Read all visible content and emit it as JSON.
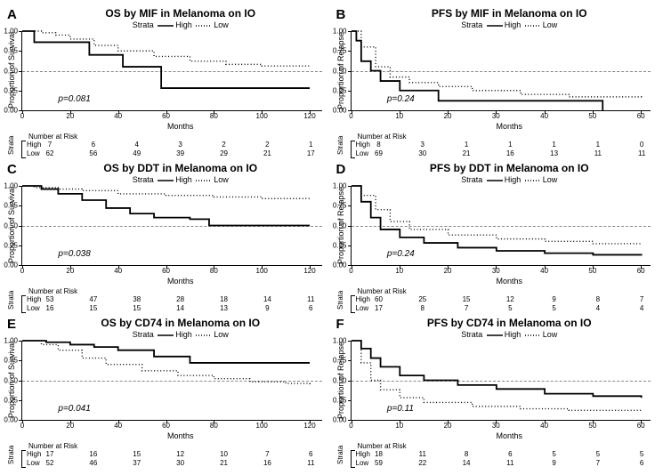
{
  "legend_label": "Strata",
  "legend_high": "High",
  "legend_low": "Low",
  "colors": {
    "high": "#000000",
    "low": "#000000",
    "ref": "#888888",
    "bg": "#ffffff"
  },
  "panels": [
    {
      "letter": "A",
      "title": "OS by MIF in Melanoma on IO",
      "ylab": "Proportion of Survival",
      "xlab": "Months",
      "pval": "p=0.081",
      "yticks": [
        0,
        0.25,
        0.5,
        0.75,
        1.0
      ],
      "xticks": [
        0,
        20,
        40,
        60,
        80,
        100,
        120
      ],
      "xlim": [
        0,
        125
      ],
      "ylim": [
        0,
        1
      ],
      "ref_y": 0.5,
      "series": {
        "high": {
          "style": "solid",
          "pts": [
            [
              0,
              1.0
            ],
            [
              5,
              1.0
            ],
            [
              5,
              0.86
            ],
            [
              28,
              0.86
            ],
            [
              28,
              0.7
            ],
            [
              42,
              0.7
            ],
            [
              42,
              0.55
            ],
            [
              58,
              0.55
            ],
            [
              58,
              0.28
            ],
            [
              120,
              0.28
            ]
          ]
        },
        "low": {
          "style": "dotted",
          "pts": [
            [
              0,
              1.0
            ],
            [
              8,
              0.98
            ],
            [
              14,
              0.95
            ],
            [
              20,
              0.9
            ],
            [
              30,
              0.82
            ],
            [
              40,
              0.75
            ],
            [
              55,
              0.68
            ],
            [
              70,
              0.62
            ],
            [
              85,
              0.58
            ],
            [
              100,
              0.56
            ],
            [
              120,
              0.55
            ]
          ]
        }
      },
      "risk_title": "Number at Risk",
      "risk_x": [
        0,
        20,
        40,
        60,
        80,
        100,
        120
      ],
      "risk": {
        "High": [
          7,
          6,
          4,
          3,
          2,
          2,
          1
        ],
        "Low": [
          62,
          56,
          49,
          39,
          29,
          21,
          17
        ]
      }
    },
    {
      "letter": "B",
      "title": "PFS by MIF in Melanoma on IO",
      "ylab": "Proportion of Relapse",
      "xlab": "Months",
      "pval": "p=0.24",
      "yticks": [
        0,
        0.25,
        0.5,
        0.75,
        1.0
      ],
      "xticks": [
        0,
        10,
        20,
        30,
        40,
        50,
        60
      ],
      "xlim": [
        0,
        62
      ],
      "ylim": [
        0,
        1
      ],
      "ref_y": 0.5,
      "series": {
        "high": {
          "style": "solid",
          "pts": [
            [
              0,
              1.0
            ],
            [
              1,
              0.88
            ],
            [
              2,
              0.62
            ],
            [
              4,
              0.5
            ],
            [
              6,
              0.37
            ],
            [
              10,
              0.25
            ],
            [
              18,
              0.25
            ],
            [
              18,
              0.12
            ],
            [
              52,
              0.12
            ],
            [
              52,
              0.0
            ]
          ]
        },
        "low": {
          "style": "dotted",
          "pts": [
            [
              0,
              1.0
            ],
            [
              2,
              0.8
            ],
            [
              5,
              0.55
            ],
            [
              8,
              0.42
            ],
            [
              12,
              0.35
            ],
            [
              18,
              0.3
            ],
            [
              25,
              0.25
            ],
            [
              35,
              0.2
            ],
            [
              45,
              0.17
            ],
            [
              60,
              0.15
            ]
          ]
        }
      },
      "risk_title": "Number at Risk",
      "risk_x": [
        0,
        10,
        20,
        30,
        40,
        50,
        60
      ],
      "risk": {
        "High": [
          8,
          3,
          1,
          1,
          1,
          1,
          0
        ],
        "Low": [
          69,
          30,
          21,
          16,
          13,
          11,
          11
        ]
      }
    },
    {
      "letter": "C",
      "title": "OS by DDT in Melanoma on IO",
      "ylab": "Proportion of Survival",
      "xlab": "Months",
      "pval": "p=0.038",
      "yticks": [
        0,
        0.25,
        0.5,
        0.75,
        1.0
      ],
      "xticks": [
        0,
        20,
        40,
        60,
        80,
        100,
        120
      ],
      "xlim": [
        0,
        125
      ],
      "ylim": [
        0,
        1
      ],
      "ref_y": 0.5,
      "series": {
        "high": {
          "style": "solid",
          "pts": [
            [
              0,
              1.0
            ],
            [
              8,
              0.96
            ],
            [
              15,
              0.9
            ],
            [
              25,
              0.82
            ],
            [
              35,
              0.72
            ],
            [
              45,
              0.65
            ],
            [
              55,
              0.6
            ],
            [
              70,
              0.58
            ],
            [
              78,
              0.5
            ],
            [
              95,
              0.5
            ],
            [
              120,
              0.5
            ]
          ]
        },
        "low": {
          "style": "dotted",
          "pts": [
            [
              0,
              1.0
            ],
            [
              5,
              0.98
            ],
            [
              15,
              0.96
            ],
            [
              25,
              0.94
            ],
            [
              40,
              0.9
            ],
            [
              60,
              0.88
            ],
            [
              80,
              0.86
            ],
            [
              100,
              0.84
            ],
            [
              120,
              0.82
            ]
          ]
        }
      },
      "risk_title": "Number at Risk",
      "risk_x": [
        0,
        20,
        40,
        60,
        80,
        100,
        120
      ],
      "risk": {
        "High": [
          53,
          47,
          38,
          28,
          18,
          14,
          11
        ],
        "Low": [
          16,
          15,
          15,
          14,
          13,
          9,
          6
        ]
      }
    },
    {
      "letter": "D",
      "title": "PFS by DDT in Melanoma on IO",
      "ylab": "Proportion of Relapse",
      "xlab": "Months",
      "pval": "p=0.24",
      "yticks": [
        0,
        0.25,
        0.5,
        0.75,
        1.0
      ],
      "xticks": [
        0,
        10,
        20,
        30,
        40,
        50,
        60
      ],
      "xlim": [
        0,
        62
      ],
      "ylim": [
        0,
        1
      ],
      "ref_y": 0.5,
      "series": {
        "high": {
          "style": "solid",
          "pts": [
            [
              0,
              1.0
            ],
            [
              2,
              0.8
            ],
            [
              4,
              0.6
            ],
            [
              6,
              0.45
            ],
            [
              10,
              0.35
            ],
            [
              15,
              0.28
            ],
            [
              22,
              0.22
            ],
            [
              30,
              0.18
            ],
            [
              40,
              0.15
            ],
            [
              50,
              0.13
            ],
            [
              60,
              0.12
            ]
          ]
        },
        "low": {
          "style": "dotted",
          "pts": [
            [
              0,
              1.0
            ],
            [
              2,
              0.88
            ],
            [
              5,
              0.7
            ],
            [
              8,
              0.55
            ],
            [
              12,
              0.45
            ],
            [
              20,
              0.38
            ],
            [
              30,
              0.33
            ],
            [
              40,
              0.3
            ],
            [
              50,
              0.27
            ],
            [
              60,
              0.26
            ]
          ]
        }
      },
      "risk_title": "Number at Risk",
      "risk_x": [
        0,
        10,
        20,
        30,
        40,
        50,
        60
      ],
      "risk": {
        "High": [
          60,
          25,
          15,
          12,
          9,
          8,
          7
        ],
        "Low": [
          17,
          8,
          7,
          5,
          5,
          4,
          4
        ]
      }
    },
    {
      "letter": "E",
      "title": "OS by CD74 in Melanoma on IO",
      "ylab": "Proportion of Survival",
      "xlab": "Months",
      "pval": "p=0.041",
      "yticks": [
        0,
        0.25,
        0.5,
        0.75,
        1.0
      ],
      "xticks": [
        0,
        20,
        40,
        60,
        80,
        100,
        120
      ],
      "xlim": [
        0,
        125
      ],
      "ylim": [
        0,
        1
      ],
      "ref_y": 0.5,
      "series": {
        "high": {
          "style": "solid",
          "pts": [
            [
              0,
              1.0
            ],
            [
              10,
              0.98
            ],
            [
              20,
              0.95
            ],
            [
              30,
              0.92
            ],
            [
              40,
              0.88
            ],
            [
              55,
              0.88
            ],
            [
              55,
              0.8
            ],
            [
              70,
              0.8
            ],
            [
              70,
              0.72
            ],
            [
              120,
              0.72
            ]
          ]
        },
        "low": {
          "style": "dotted",
          "pts": [
            [
              0,
              1.0
            ],
            [
              8,
              0.95
            ],
            [
              15,
              0.88
            ],
            [
              25,
              0.78
            ],
            [
              35,
              0.7
            ],
            [
              50,
              0.62
            ],
            [
              65,
              0.56
            ],
            [
              80,
              0.52
            ],
            [
              95,
              0.48
            ],
            [
              110,
              0.46
            ],
            [
              120,
              0.45
            ]
          ]
        }
      },
      "risk_title": "Number at Risk",
      "risk_x": [
        0,
        20,
        40,
        60,
        80,
        100,
        120
      ],
      "risk": {
        "High": [
          17,
          16,
          15,
          12,
          10,
          7,
          6
        ],
        "Low": [
          52,
          46,
          37,
          30,
          21,
          16,
          11
        ]
      }
    },
    {
      "letter": "F",
      "title": "PFS by CD74 in Melanoma on IO",
      "ylab": "Proportion of Relapse",
      "xlab": "Months",
      "pval": "p=0.11",
      "yticks": [
        0,
        0.25,
        0.5,
        0.75,
        1.0
      ],
      "xticks": [
        0,
        10,
        20,
        30,
        40,
        50,
        60
      ],
      "xlim": [
        0,
        62
      ],
      "ylim": [
        0,
        1
      ],
      "ref_y": 0.5,
      "series": {
        "high": {
          "style": "solid",
          "pts": [
            [
              0,
              1.0
            ],
            [
              2,
              0.9
            ],
            [
              4,
              0.78
            ],
            [
              6,
              0.67
            ],
            [
              10,
              0.56
            ],
            [
              15,
              0.5
            ],
            [
              22,
              0.44
            ],
            [
              30,
              0.39
            ],
            [
              40,
              0.33
            ],
            [
              50,
              0.3
            ],
            [
              60,
              0.28
            ]
          ]
        },
        "low": {
          "style": "dotted",
          "pts": [
            [
              0,
              1.0
            ],
            [
              2,
              0.72
            ],
            [
              4,
              0.5
            ],
            [
              6,
              0.38
            ],
            [
              10,
              0.28
            ],
            [
              15,
              0.22
            ],
            [
              25,
              0.17
            ],
            [
              35,
              0.14
            ],
            [
              45,
              0.12
            ],
            [
              60,
              0.1
            ]
          ]
        }
      },
      "risk_title": "Number at Risk",
      "risk_x": [
        0,
        10,
        20,
        30,
        40,
        50,
        60
      ],
      "risk": {
        "High": [
          18,
          11,
          8,
          6,
          5,
          5,
          5
        ],
        "Low": [
          59,
          22,
          14,
          11,
          9,
          7,
          6
        ]
      }
    }
  ]
}
